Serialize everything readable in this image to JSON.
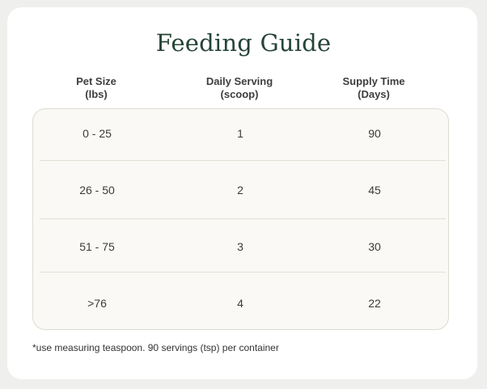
{
  "title": "Feeding Guide",
  "headers": [
    {
      "line1": "Pet Size",
      "line2": "(lbs)"
    },
    {
      "line1": "Daily Serving",
      "line2": "(scoop)"
    },
    {
      "line1": "Supply Time",
      "line2": "(Days)"
    }
  ],
  "rows": [
    {
      "size": "0 - 25",
      "serving": "1",
      "supply": "90"
    },
    {
      "size": "26 - 50",
      "serving": "2",
      "supply": "45"
    },
    {
      "size": "51 - 75",
      "serving": "3",
      "supply": "30"
    },
    {
      "size": ">76",
      "serving": "4",
      "supply": "22"
    }
  ],
  "footnote": "*use measuring teaspoon. 90 servings (tsp) per container",
  "colors": {
    "title": "#264437",
    "card_background": "#ffffff",
    "table_background": "#faf9f5",
    "page_background": "#efefed"
  }
}
